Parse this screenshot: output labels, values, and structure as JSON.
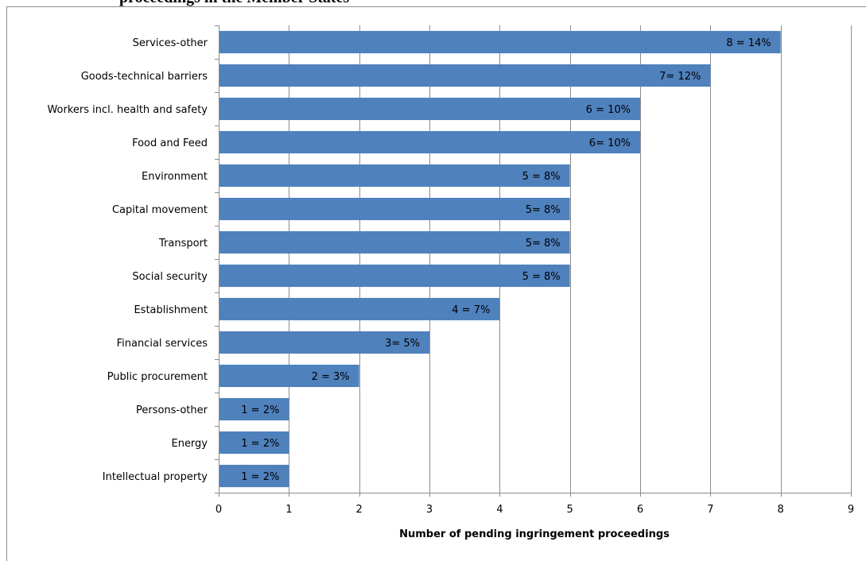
{
  "top_caption": "proceedings in the Member States",
  "chart_data": {
    "type": "bar",
    "orientation": "horizontal",
    "categories": [
      "Services-other",
      "Goods-technical barriers",
      "Workers incl. health and safety",
      "Food and Feed",
      "Environment",
      "Capital movement",
      "Transport",
      "Social security",
      "Establishment",
      "Financial services",
      "Public procurement",
      "Persons-other",
      "Energy",
      "Intellectual property"
    ],
    "values": [
      8,
      7,
      6,
      6,
      5,
      5,
      5,
      5,
      4,
      3,
      2,
      1,
      1,
      1
    ],
    "data_labels": [
      "8 = 14%",
      "7= 12%",
      "6 = 10%",
      "6= 10%",
      "5 = 8%",
      "5= 8%",
      "5= 8%",
      "5 = 8%",
      "4 = 7%",
      "3= 5%",
      "2 = 3%",
      "1 = 2%",
      "1 = 2%",
      "1 = 2%"
    ],
    "xlabel": "Number of pending ingringement proceedings",
    "ylabel": "",
    "xlim": [
      0,
      9
    ],
    "x_ticks": [
      0,
      1,
      2,
      3,
      4,
      5,
      6,
      7,
      8,
      9
    ],
    "grid": "vertical",
    "legend": "none",
    "colors": {
      "bar": "#4f81bd",
      "grid": "#8c8c8c",
      "text": "#000000"
    }
  }
}
